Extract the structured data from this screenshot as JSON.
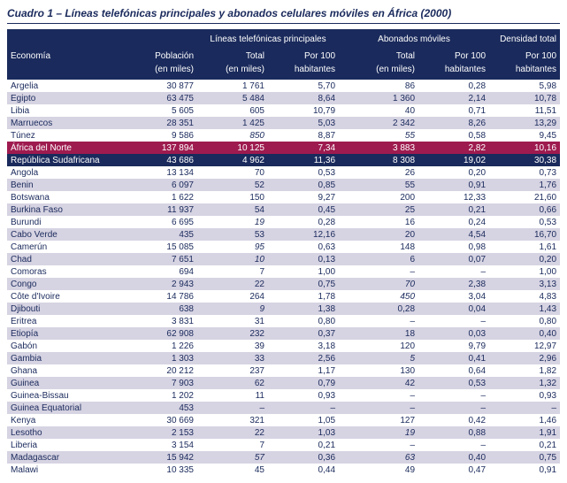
{
  "title": "Cuadro 1 – Líneas telefónicas principales y abonados celulares móviles en África (2000)",
  "headers": {
    "economia": "Economía",
    "poblacion": "Población",
    "poblacion_sub": "(en miles)",
    "lineas_group": "Líneas telefónicas principales",
    "abonados_group": "Abonados móviles",
    "densidad_group": "Densidad total",
    "total": "Total",
    "total_sub": "(en miles)",
    "por100": "Por 100",
    "por100_sub": "habitantes"
  },
  "rows": [
    {
      "e": "Argelia",
      "p": "30 877",
      "lt": "1 761",
      "lp": "5,70",
      "mt": "86",
      "mp": "0,28",
      "d": "5,98",
      "cls": "odd"
    },
    {
      "e": "Egipto",
      "p": "63 475",
      "lt": "5 484",
      "lp": "8,64",
      "mt": "1 360",
      "mp": "2,14",
      "d": "10,78",
      "cls": "even"
    },
    {
      "e": "Libia",
      "p": "5 605",
      "lt": "605",
      "lp": "10,79",
      "mt": "40",
      "mp": "0,71",
      "d": "11,51",
      "cls": "odd"
    },
    {
      "e": "Marruecos",
      "p": "28 351",
      "lt": "1 425",
      "lp": "5,03",
      "mt": "2 342",
      "mp": "8,26",
      "d": "13,29",
      "cls": "even"
    },
    {
      "e": "Túnez",
      "p": "9 586",
      "lt": "850",
      "lt_i": true,
      "lp": "8,87",
      "mt": "55",
      "mt_i": true,
      "mp": "0,58",
      "d": "9,45",
      "cls": "odd"
    },
    {
      "e": "África del Norte",
      "p": "137 894",
      "lt": "10 125",
      "lp": "7,34",
      "mt": "3 883",
      "mp": "2,82",
      "d": "10,16",
      "cls": "hl1"
    },
    {
      "e": "República Sudafricana",
      "p": "43 686",
      "lt": "4 962",
      "lp": "11,36",
      "mt": "8 308",
      "mp": "19,02",
      "d": "30,38",
      "cls": "hl2"
    },
    {
      "e": "Angola",
      "p": "13 134",
      "lt": "70",
      "lp": "0,53",
      "mt": "26",
      "mp": "0,20",
      "d": "0,73",
      "cls": "odd"
    },
    {
      "e": "Benin",
      "p": "6 097",
      "lt": "52",
      "lp": "0,85",
      "mt": "55",
      "mp": "0,91",
      "d": "1,76",
      "cls": "even"
    },
    {
      "e": "Botswana",
      "p": "1 622",
      "lt": "150",
      "lp": "9,27",
      "mt": "200",
      "mp": "12,33",
      "d": "21,60",
      "cls": "odd"
    },
    {
      "e": "Burkina Faso",
      "p": "11 937",
      "lt": "54",
      "lp": "0,45",
      "mt": "25",
      "mp": "0,21",
      "d": "0,66",
      "cls": "even"
    },
    {
      "e": "Burundi",
      "p": "6 695",
      "lt": "19",
      "lt_i": true,
      "lp": "0,28",
      "mt": "16",
      "mp": "0,24",
      "d": "0,53",
      "cls": "odd"
    },
    {
      "e": "Cabo Verde",
      "p": "435",
      "lt": "53",
      "lp": "12,16",
      "mt": "20",
      "mp": "4,54",
      "d": "16,70",
      "cls": "even"
    },
    {
      "e": "Camerún",
      "p": "15 085",
      "lt": "95",
      "lt_i": true,
      "lp": "0,63",
      "mt": "148",
      "mp": "0,98",
      "d": "1,61",
      "cls": "odd"
    },
    {
      "e": "Chad",
      "p": "7 651",
      "lt": "10",
      "lt_i": true,
      "lp": "0,13",
      "mt": "6",
      "mp": "0,07",
      "d": "0,20",
      "cls": "even"
    },
    {
      "e": "Comoras",
      "p": "694",
      "lt": "7",
      "lp": "1,00",
      "mt": "–",
      "mp": "–",
      "d": "1,00",
      "cls": "odd"
    },
    {
      "e": "Congo",
      "p": "2 943",
      "lt": "22",
      "lp": "0,75",
      "mt": "70",
      "mt_i": true,
      "mp": "2,38",
      "d": "3,13",
      "cls": "even"
    },
    {
      "e": "Côte d'Ivoire",
      "p": "14 786",
      "lt": "264",
      "lp": "1,78",
      "mt": "450",
      "mt_i": true,
      "mp": "3,04",
      "d": "4,83",
      "cls": "odd"
    },
    {
      "e": "Djibouti",
      "p": "638",
      "lt": "9",
      "lt_i": true,
      "lp": "1,38",
      "mt": "0,28",
      "mp": "0,04",
      "d": "1,43",
      "cls": "even"
    },
    {
      "e": "Eritrea",
      "p": "3 831",
      "lt": "31",
      "lp": "0,80",
      "mt": "–",
      "mp": "–",
      "d": "0,80",
      "cls": "odd"
    },
    {
      "e": "Etiopía",
      "p": "62 908",
      "lt": "232",
      "lp": "0,37",
      "mt": "18",
      "mp": "0,03",
      "d": "0,40",
      "cls": "even"
    },
    {
      "e": "Gabón",
      "p": "1 226",
      "lt": "39",
      "lp": "3,18",
      "mt": "120",
      "mp": "9,79",
      "d": "12,97",
      "cls": "odd"
    },
    {
      "e": "Gambia",
      "p": "1 303",
      "lt": "33",
      "lp": "2,56",
      "mt": "5",
      "mt_i": true,
      "mp": "0,41",
      "d": "2,96",
      "cls": "even"
    },
    {
      "e": "Ghana",
      "p": "20 212",
      "lt": "237",
      "lp": "1,17",
      "mt": "130",
      "mp": "0,64",
      "d": "1,82",
      "cls": "odd"
    },
    {
      "e": "Guinea",
      "p": "7 903",
      "lt": "62",
      "lp": "0,79",
      "mt": "42",
      "mp": "0,53",
      "d": "1,32",
      "cls": "even"
    },
    {
      "e": "Guinea-Bissau",
      "p": "1 202",
      "lt": "11",
      "lp": "0,93",
      "mt": "–",
      "mp": "–",
      "d": "0,93",
      "cls": "odd"
    },
    {
      "e": "Guinea Equatorial",
      "p": "453",
      "lt": "–",
      "lp": "–",
      "mt": "–",
      "mp": "–",
      "d": "–",
      "cls": "even"
    },
    {
      "e": "Kenya",
      "p": "30 669",
      "lt": "321",
      "lp": "1,05",
      "mt": "127",
      "mp": "0,42",
      "d": "1,46",
      "cls": "odd"
    },
    {
      "e": "Lesotho",
      "p": "2 153",
      "lt": "22",
      "lp": "1,03",
      "mt": "19",
      "mt_i": true,
      "mp": "0,88",
      "d": "1,91",
      "cls": "even"
    },
    {
      "e": "Liberia",
      "p": "3 154",
      "lt": "7",
      "lp": "0,21",
      "mt": "–",
      "mp": "–",
      "d": "0,21",
      "cls": "odd"
    },
    {
      "e": "Madagascar",
      "p": "15 942",
      "lt": "57",
      "lt_i": true,
      "lp": "0,36",
      "mt": "63",
      "mt_i": true,
      "mp": "0,40",
      "d": "0,75",
      "cls": "even"
    },
    {
      "e": "Malawi",
      "p": "10 335",
      "lt": "45",
      "lp": "0,44",
      "mt": "49",
      "mp": "0,47",
      "d": "0,91",
      "cls": "odd"
    }
  ]
}
